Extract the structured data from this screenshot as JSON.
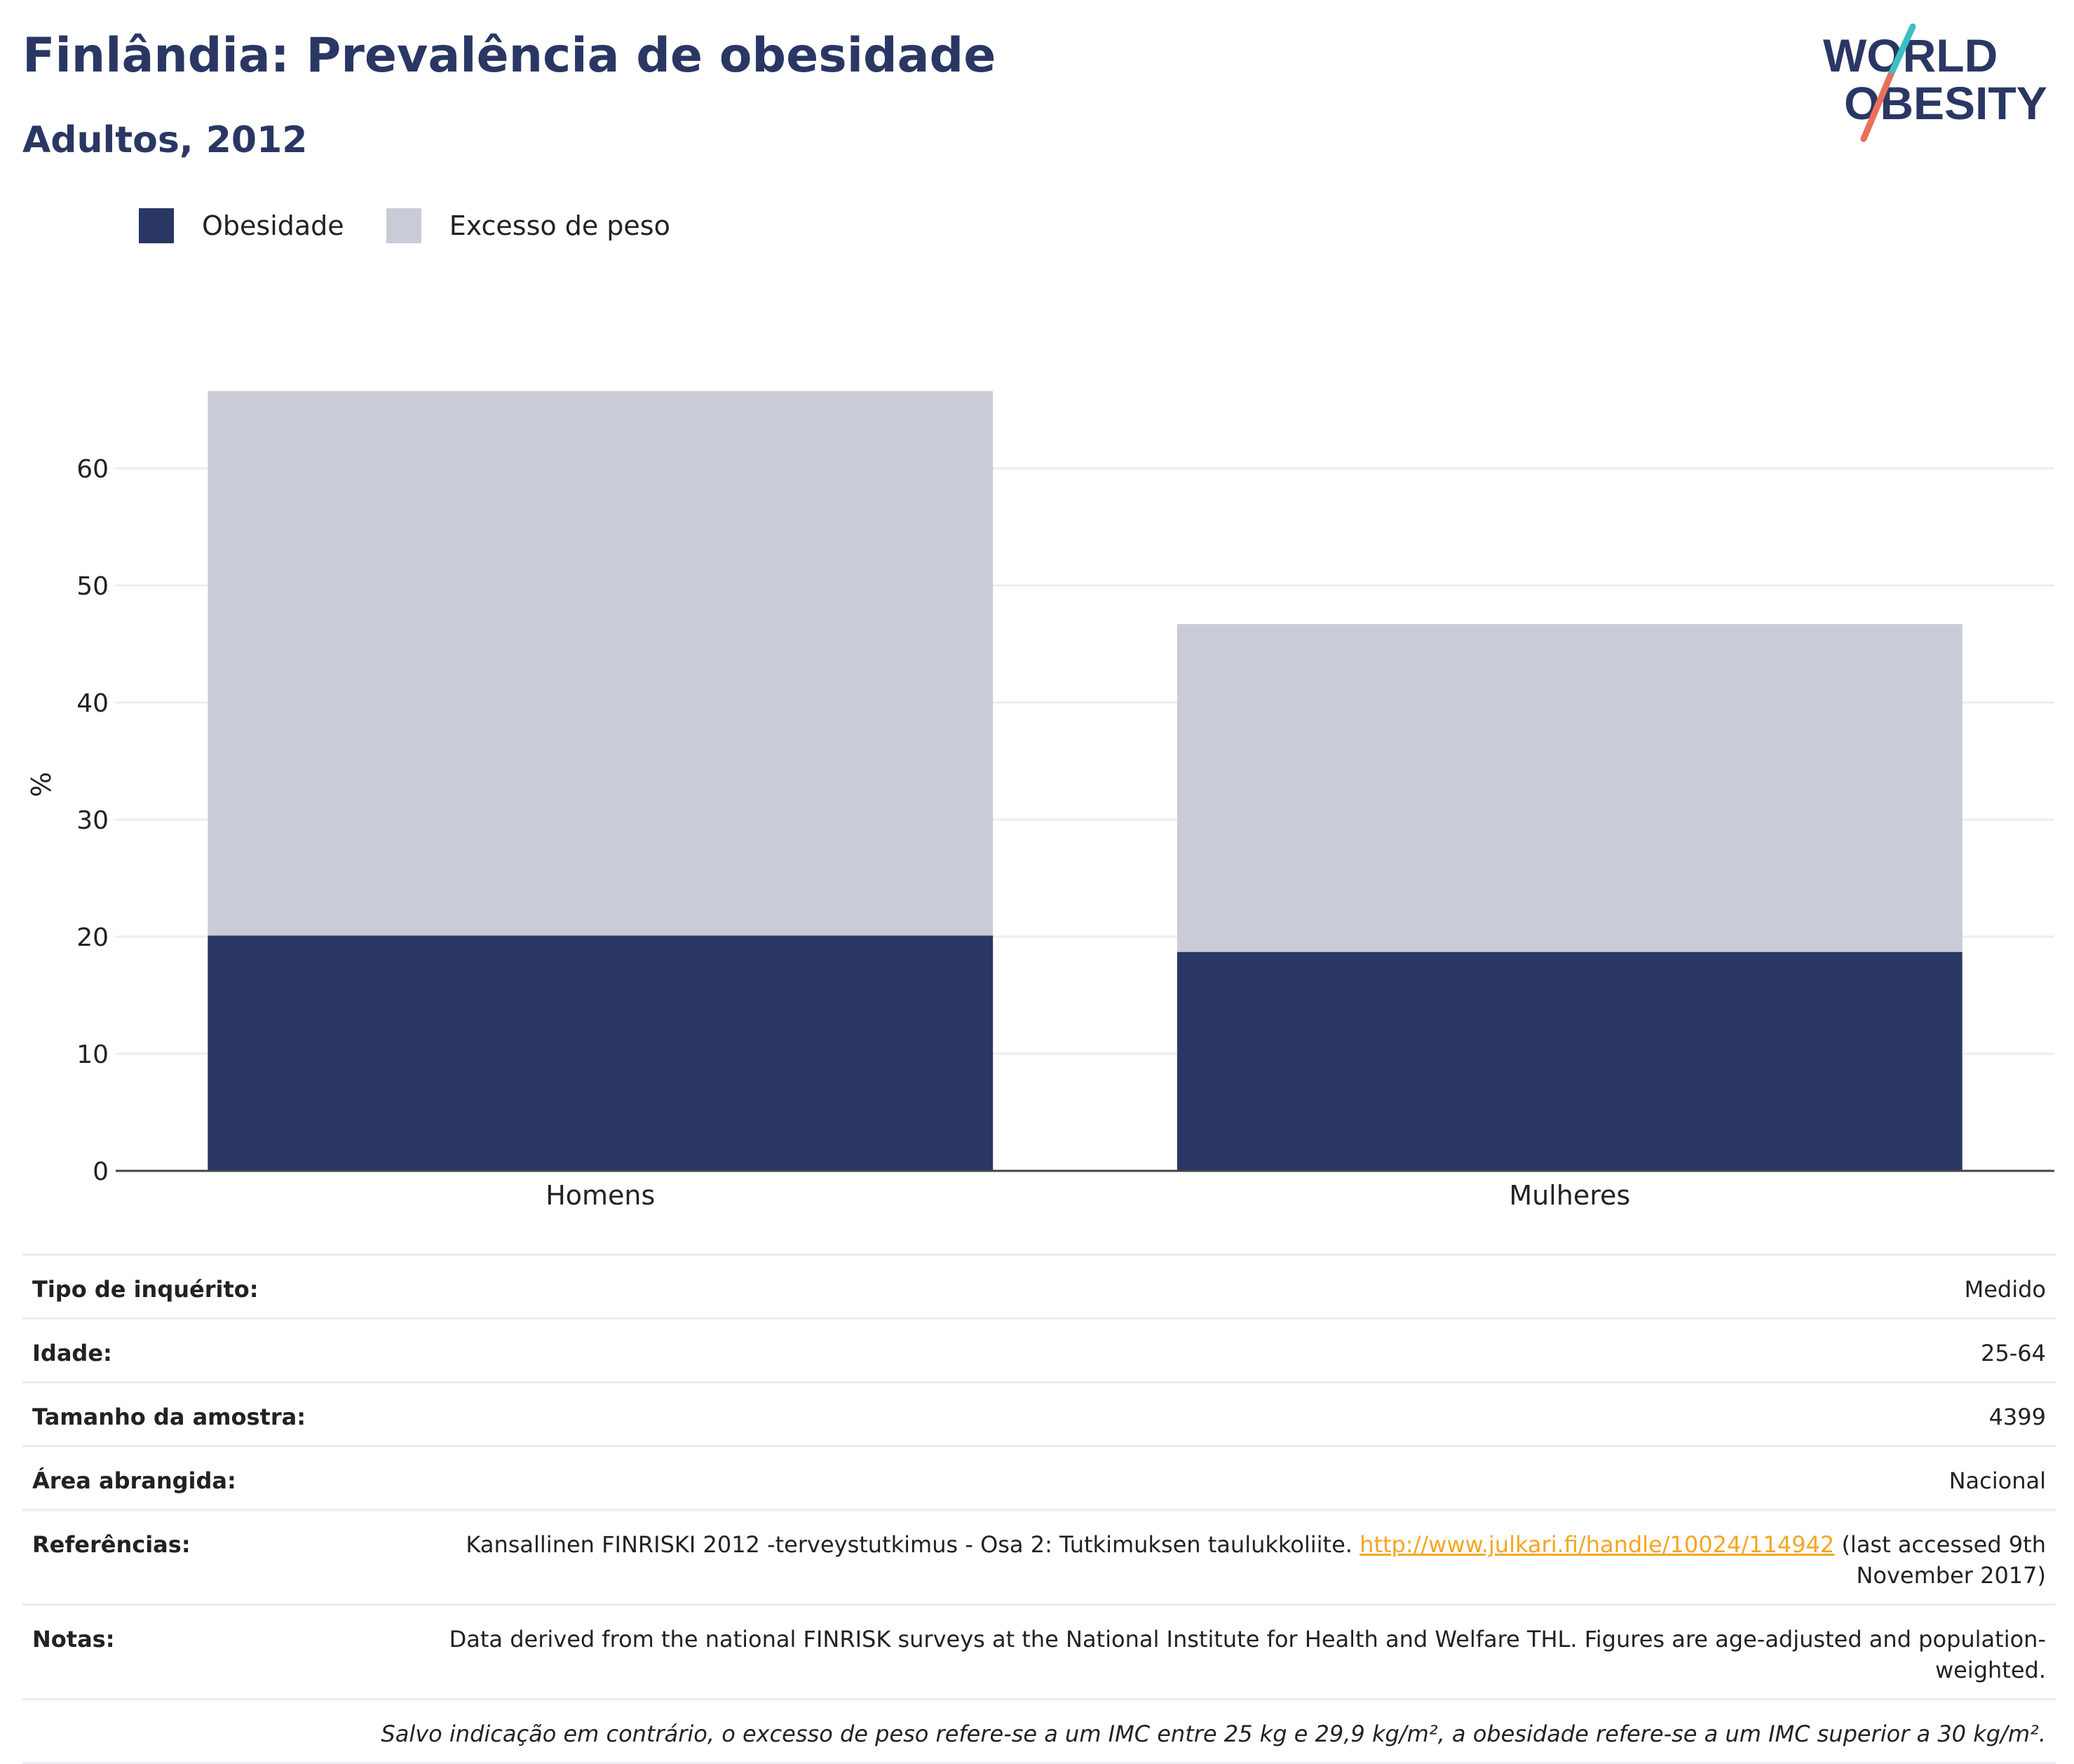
{
  "header": {
    "title": "Finlândia: Prevalência de obesidade",
    "subtitle": "Adultos, 2012"
  },
  "logo": {
    "line1": "WORLD",
    "line2": "OBESITY",
    "colors": {
      "text": "#2a3764",
      "slash_top": "#3bbfc4",
      "slash_bottom": "#e8705a"
    }
  },
  "colors": {
    "obesity": "#2a3764",
    "overweight": "#c9ccd7",
    "grid": "#ececf2",
    "axis": "#444444"
  },
  "chart_data": {
    "type": "bar",
    "stacked": true,
    "categories": [
      "Homens",
      "Mulheres"
    ],
    "series": [
      {
        "name": "Obesidade",
        "values": [
          20.1,
          18.7
        ],
        "color": "#2a3764"
      },
      {
        "name": "Excesso de peso",
        "values": [
          46.5,
          28.0
        ],
        "color": "#c9ccd7"
      }
    ],
    "title": "",
    "xlabel": "",
    "ylabel": "%",
    "ylim": [
      0,
      70
    ],
    "yticks": [
      0,
      10,
      20,
      30,
      40,
      50,
      60
    ],
    "grid": true,
    "legend_position": "top-left"
  },
  "info": {
    "rows": [
      {
        "key": "Tipo de inquérito:",
        "value": "Medido"
      },
      {
        "key": "Idade:",
        "value": "25-64"
      },
      {
        "key": "Tamanho da amostra:",
        "value": "4399"
      },
      {
        "key": "Área abrangida:",
        "value": "Nacional"
      }
    ],
    "references": {
      "key": "Referências:",
      "text_before": "Kansallinen FINRISKI 2012 -terveystutkimus - Osa 2: Tutkimuksen taulukkoliite. ",
      "link": "http://www.julkari.fi/handle/10024/114942",
      "text_after": " (last accessed 9th November 2017)"
    },
    "notes": {
      "key": "Notas:",
      "value": "Data derived from the national FINRISK surveys at the National Institute for Health and Welfare THL. Figures are age-adjusted and population-weighted."
    },
    "footnote": "Salvo indicação em contrário, o excesso de peso refere-se a um IMC entre 25 kg e 29,9 kg/m², a obesidade refere-se a um IMC superior a 30 kg/m²."
  }
}
